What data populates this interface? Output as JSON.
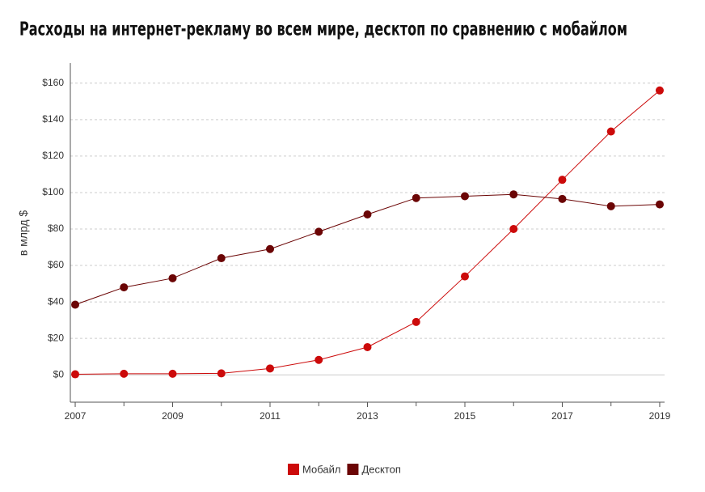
{
  "chart_data": {
    "type": "line",
    "title": "Расходы на интернет-рекламу во всем мире, десктоп по сравнению с мобайлом",
    "y_label": "в млрд $",
    "x": [
      2007,
      2008,
      2009,
      2010,
      2011,
      2012,
      2013,
      2014,
      2015,
      2016,
      2017,
      2018,
      2019
    ],
    "series": [
      {
        "name": "Мобайл",
        "color": "#cc0a0a",
        "values": [
          0.3,
          0.6,
          0.6,
          0.8,
          3.5,
          8.2,
          15.2,
          29,
          54,
          80,
          107,
          133.5,
          156
        ]
      },
      {
        "name": "Десктоп",
        "color": "#6b0505",
        "values": [
          38.5,
          48,
          53,
          64,
          69,
          78.5,
          88,
          97,
          98,
          99,
          96.5,
          92.5,
          93.5
        ]
      }
    ],
    "xlim": [
      2006.9,
      2019.1
    ],
    "xticks": [
      2007,
      2009,
      2011,
      2013,
      2015,
      2017,
      2019
    ],
    "ylim": [
      -15,
      171
    ],
    "yticks": [
      {
        "value": 0,
        "label": "$0"
      },
      {
        "value": 20,
        "label": "$20"
      },
      {
        "value": 40,
        "label": "$40"
      },
      {
        "value": 60,
        "label": "$60"
      },
      {
        "value": 80,
        "label": "$80"
      },
      {
        "value": 100,
        "label": "$100"
      },
      {
        "value": 120,
        "label": "$120"
      },
      {
        "value": 140,
        "label": "$140"
      },
      {
        "value": 160,
        "label": "$160"
      }
    ],
    "grid": true
  }
}
